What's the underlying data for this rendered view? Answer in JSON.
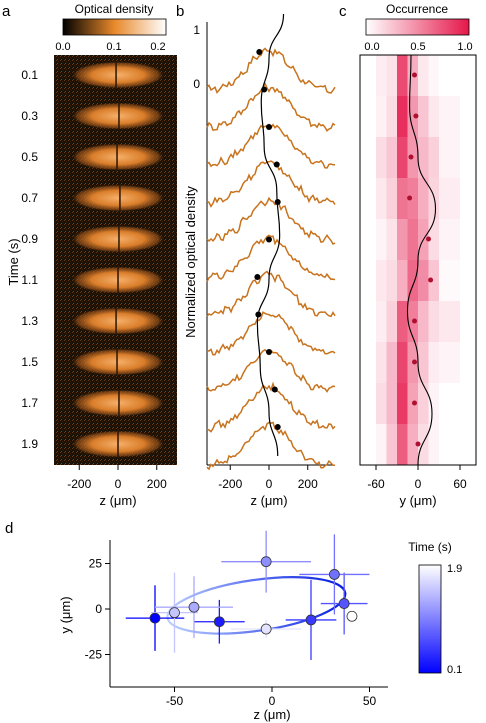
{
  "panels": {
    "a": "a",
    "b": "b",
    "c": "c",
    "d": "d"
  },
  "chart_data": [
    {
      "panel": "a",
      "type": "heatmap",
      "colorbar": {
        "title": "Optical density",
        "ticks": [
          "0.0",
          "0.1",
          "0.2"
        ],
        "range": [
          0,
          0.2
        ],
        "colors": [
          "#000000",
          "#e8892b",
          "#ffffff"
        ]
      },
      "times": [
        "0.1",
        "0.3",
        "0.5",
        "0.7",
        "0.9",
        "1.1",
        "1.3",
        "1.5",
        "1.7",
        "1.9"
      ],
      "ylabel": "Time (s)",
      "xlabel": "z (μm)",
      "xticks": [
        "-200",
        "0",
        "200"
      ],
      "xlim": [
        -320,
        320
      ],
      "line_z": [
        -10,
        5,
        -5,
        10,
        5,
        0,
        -10,
        -5,
        5,
        0
      ]
    },
    {
      "panel": "b",
      "type": "line",
      "ylabel": "Normalized optical density",
      "xlabel": "z (μm)",
      "xticks": [
        "-200",
        "0",
        "200"
      ],
      "xlim": [
        -320,
        320
      ],
      "yticks": [
        "1",
        "0"
      ],
      "line_color": "#c8731e",
      "dots_z": [
        -50,
        -25,
        0,
        40,
        45,
        0,
        -60,
        -55,
        0,
        30,
        45
      ],
      "curve_z": [
        75,
        0,
        -40,
        -25,
        40,
        55,
        0,
        -60,
        -45,
        0,
        45
      ]
    },
    {
      "panel": "c",
      "type": "heatmap",
      "colorbar": {
        "title": "Occurrence",
        "ticks": [
          "0.0",
          "0.5",
          "1.0"
        ],
        "range": [
          0,
          1
        ],
        "colors": [
          "#ffffff",
          "#e5174a"
        ]
      },
      "xlabel": "y (μm)",
      "xticks": [
        "-60",
        "0",
        "60"
      ],
      "x_bins": [
        -45,
        -30,
        -15,
        0,
        15,
        30,
        45
      ],
      "values": [
        [
          0.08,
          0.12,
          0.78,
          0.35,
          0.1,
          0.04,
          0.0
        ],
        [
          0.06,
          0.15,
          0.9,
          0.45,
          0.25,
          0.1,
          0.05
        ],
        [
          0.15,
          0.25,
          0.8,
          0.45,
          0.3,
          0.2,
          0.05
        ],
        [
          0.1,
          0.2,
          0.6,
          0.55,
          0.35,
          0.18,
          0.08
        ],
        [
          0.05,
          0.12,
          0.45,
          0.6,
          0.4,
          0.15,
          0.05
        ],
        [
          0.1,
          0.15,
          0.35,
          0.65,
          0.5,
          0.25,
          0.02
        ],
        [
          0.08,
          0.2,
          0.7,
          0.55,
          0.3,
          0.15,
          0.1
        ],
        [
          0.12,
          0.3,
          0.8,
          0.45,
          0.25,
          0.08,
          0.05
        ],
        [
          0.15,
          0.3,
          0.85,
          0.4,
          0.2,
          0.05,
          0.0
        ],
        [
          0.05,
          0.25,
          0.7,
          0.35,
          0.15,
          0.05,
          0.0
        ]
      ],
      "dots_y": [
        -5,
        -3,
        -10,
        -12,
        15,
        18,
        -5,
        -5,
        -5,
        0
      ],
      "curve_y": [
        -10,
        -12,
        0,
        25,
        0,
        -15,
        0,
        20,
        0
      ]
    },
    {
      "panel": "d",
      "type": "scatter",
      "xlabel": "z (μm)",
      "ylabel": "y (μm)",
      "xticks": [
        "-50",
        "0",
        "50"
      ],
      "yticks": [
        "25",
        "0",
        "-25"
      ],
      "xlim": [
        -80,
        85
      ],
      "ylim": [
        -38,
        43
      ],
      "colorbar": {
        "title": "Time (s)",
        "ticks": [
          "1.9",
          "0.1"
        ],
        "range": [
          0.1,
          1.9
        ],
        "colors": [
          "#0000ff",
          "#ffffff"
        ]
      },
      "points": [
        {
          "t": 0.1,
          "z": -60,
          "y": -5,
          "xerr": 15,
          "yerr": 18
        },
        {
          "t": 0.3,
          "z": -27,
          "y": -7,
          "xerr": 13,
          "yerr": 12
        },
        {
          "t": 0.5,
          "z": 20,
          "y": -6,
          "xerr": 13,
          "yerr": 22
        },
        {
          "t": 0.7,
          "z": 37,
          "y": 3,
          "xerr": 12,
          "yerr": 17
        },
        {
          "t": 0.9,
          "z": 32,
          "y": 19,
          "xerr": 18,
          "yerr": 22
        },
        {
          "t": 1.1,
          "z": -3,
          "y": 26,
          "xerr": 23,
          "yerr": 17
        },
        {
          "t": 1.3,
          "z": -40,
          "y": 1,
          "xerr": 20,
          "yerr": 17
        },
        {
          "t": 1.5,
          "z": -50,
          "y": -2,
          "xerr": 12,
          "yerr": 22
        },
        {
          "t": 1.7,
          "z": -3,
          "y": -11,
          "xerr": 18,
          "yerr": 5
        },
        {
          "t": 1.9,
          "z": 41,
          "y": -4,
          "xerr": 3,
          "yerr": 3
        }
      ],
      "ellipse": {
        "cz": -8,
        "cy": 2,
        "rz": 46,
        "ry": 14,
        "angle_deg": -8
      }
    }
  ]
}
